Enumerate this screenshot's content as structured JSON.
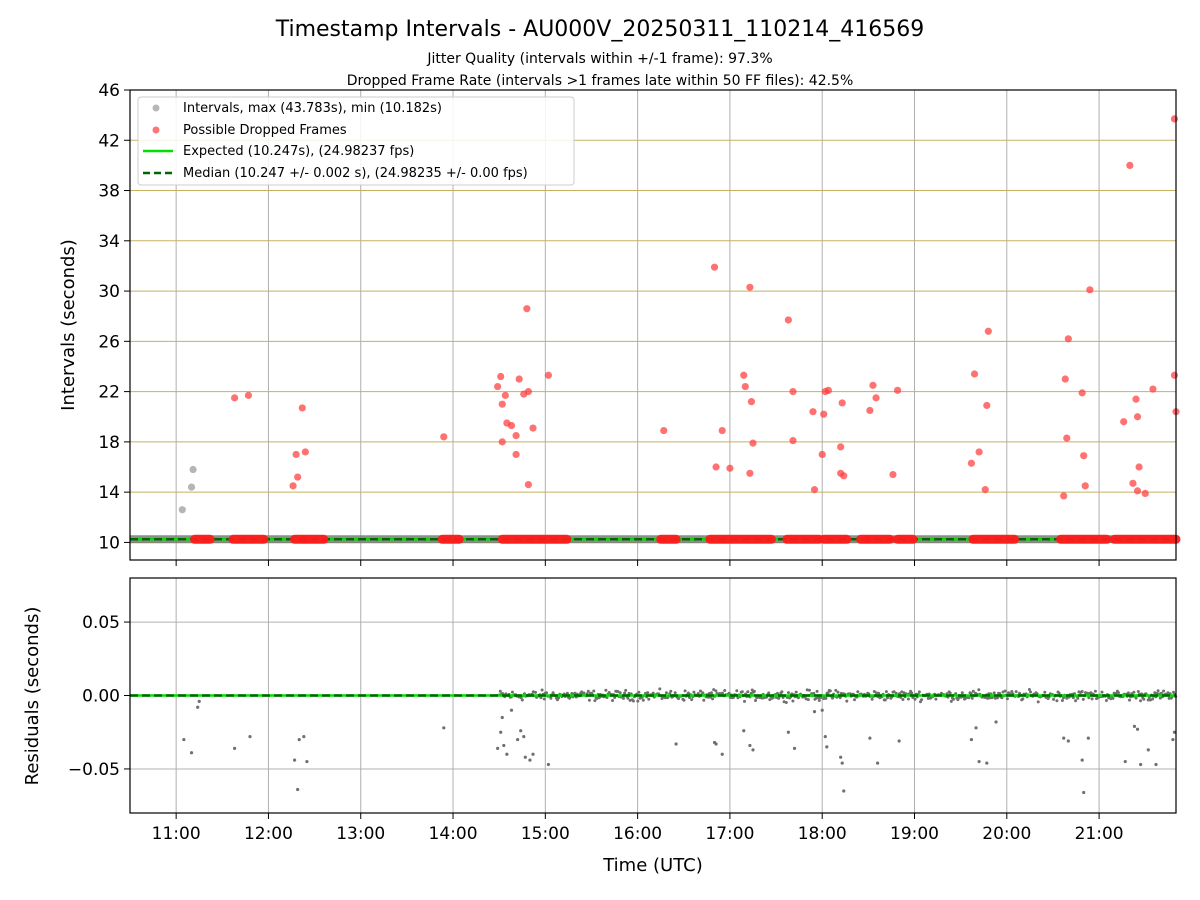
{
  "chart_data": [
    {
      "type": "scatter",
      "title": "Timestamp Intervals - AU000V_20250311_110214_416569",
      "subtitle_lines": [
        "Jitter Quality (intervals within +/-1 frame): 97.3%",
        "Dropped Frame Rate (intervals >1 frames late within 50 FF files): 42.5%"
      ],
      "xlabel": "",
      "ylabel": "Intervals (seconds)",
      "xlim": [
        "10:30",
        "21:50"
      ],
      "ylim": [
        8.6,
        46
      ],
      "yticks": [
        10,
        14,
        18,
        22,
        26,
        30,
        34,
        38,
        42,
        46
      ],
      "ytick_labels": [
        "10",
        "14",
        "18",
        "22",
        "26",
        "30",
        "34",
        "38",
        "42",
        "46"
      ],
      "grid": {
        "vertical": "#b0b0b0",
        "horizontal": "#c8b060"
      },
      "legend": {
        "placement": "top-left",
        "entries": [
          {
            "label": "Intervals, max (43.783s), min (10.182s)",
            "kind": "marker",
            "color": "#999999"
          },
          {
            "label": "Possible Dropped Frames",
            "kind": "marker",
            "color": "#ff3b3b"
          },
          {
            "label": "Expected (10.247s), (24.98237 fps)",
            "kind": "line",
            "color": "#00e000"
          },
          {
            "label": "Median (10.247 +/- 0.002 s), (24.98235 +/- 0.00 fps)",
            "kind": "dashed",
            "color": "#006600"
          }
        ]
      },
      "expected_value": 10.247,
      "median_value": 10.247,
      "baseline_segments": [
        [
          "10:30",
          "21:50"
        ]
      ],
      "dropped_baseline_segments": [
        [
          "11:12",
          "11:22"
        ],
        [
          "11:37",
          "11:57"
        ],
        [
          "12:17",
          "12:23"
        ],
        [
          "12:24",
          "12:36"
        ],
        [
          "13:53",
          "14:04"
        ],
        [
          "14:32",
          "15:14"
        ],
        [
          "16:15",
          "16:25"
        ],
        [
          "16:47",
          "17:27"
        ],
        [
          "17:37",
          "17:58"
        ],
        [
          "18:01",
          "18:16"
        ],
        [
          "18:25",
          "18:29"
        ],
        [
          "18:30",
          "18:44"
        ],
        [
          "18:49",
          "18:59"
        ],
        [
          "19:38",
          "20:05"
        ],
        [
          "20:35",
          "21:05"
        ],
        [
          "21:10",
          "21:50"
        ]
      ],
      "series": [
        {
          "name": "Intervals, max (43.783s), min (10.182s)",
          "color": "#999999",
          "points": [
            [
              "11:04",
              12.6
            ],
            [
              "11:10",
              14.4
            ],
            [
              "11:11",
              15.8
            ]
          ]
        },
        {
          "name": "Possible Dropped Frames",
          "color": "#ff3b3b",
          "points": [
            [
              "11:38",
              21.5
            ],
            [
              "11:47",
              21.7
            ],
            [
              "12:16",
              14.5
            ],
            [
              "12:18",
              17.0
            ],
            [
              "12:19",
              15.2
            ],
            [
              "12:22",
              20.7
            ],
            [
              "12:24",
              17.2
            ],
            [
              "13:54",
              18.4
            ],
            [
              "14:29",
              22.4
            ],
            [
              "14:31",
              23.2
            ],
            [
              "14:32",
              18.0
            ],
            [
              "14:32",
              21.0
            ],
            [
              "14:34",
              21.7
            ],
            [
              "14:35",
              19.5
            ],
            [
              "14:38",
              19.3
            ],
            [
              "14:41",
              18.5
            ],
            [
              "14:41",
              17.0
            ],
            [
              "14:43",
              23.0
            ],
            [
              "14:46",
              21.8
            ],
            [
              "14:48",
              28.6
            ],
            [
              "14:49",
              22.0
            ],
            [
              "14:49",
              14.6
            ],
            [
              "14:52",
              19.1
            ],
            [
              "15:02",
              23.3
            ],
            [
              "16:17",
              18.9
            ],
            [
              "16:50",
              31.9
            ],
            [
              "16:51",
              16.0
            ],
            [
              "16:55",
              18.9
            ],
            [
              "17:00",
              15.9
            ],
            [
              "17:09",
              23.3
            ],
            [
              "17:10",
              22.4
            ],
            [
              "17:13",
              15.5
            ],
            [
              "17:13",
              30.3
            ],
            [
              "17:14",
              21.2
            ],
            [
              "17:15",
              17.9
            ],
            [
              "17:38",
              27.7
            ],
            [
              "17:41",
              22.0
            ],
            [
              "17:41",
              18.1
            ],
            [
              "17:54",
              20.4
            ],
            [
              "17:55",
              14.2
            ],
            [
              "18:00",
              17.0
            ],
            [
              "18:01",
              20.2
            ],
            [
              "18:02",
              22.0
            ],
            [
              "18:04",
              22.1
            ],
            [
              "18:12",
              17.6
            ],
            [
              "18:12",
              15.5
            ],
            [
              "18:13",
              21.1
            ],
            [
              "18:14",
              15.3
            ],
            [
              "18:31",
              20.5
            ],
            [
              "18:33",
              22.5
            ],
            [
              "18:35",
              21.5
            ],
            [
              "18:46",
              15.4
            ],
            [
              "18:49",
              22.1
            ],
            [
              "19:37",
              16.3
            ],
            [
              "19:39",
              23.4
            ],
            [
              "19:42",
              17.2
            ],
            [
              "19:46",
              14.2
            ],
            [
              "19:47",
              20.9
            ],
            [
              "19:48",
              26.8
            ],
            [
              "20:37",
              13.7
            ],
            [
              "20:38",
              23.0
            ],
            [
              "20:39",
              18.3
            ],
            [
              "20:40",
              26.2
            ],
            [
              "20:49",
              21.9
            ],
            [
              "20:50",
              16.9
            ],
            [
              "20:51",
              14.5
            ],
            [
              "20:54",
              30.1
            ],
            [
              "21:16",
              19.6
            ],
            [
              "21:20",
              40.0
            ],
            [
              "21:22",
              14.7
            ],
            [
              "21:24",
              21.4
            ],
            [
              "21:25",
              20.0
            ],
            [
              "21:25",
              14.1
            ],
            [
              "21:26",
              16.0
            ],
            [
              "21:30",
              13.9
            ],
            [
              "21:35",
              22.2
            ],
            [
              "21:49",
              43.7
            ],
            [
              "21:49",
              23.3
            ],
            [
              "21:50",
              20.4
            ]
          ]
        }
      ]
    },
    {
      "type": "scatter",
      "xlabel": "Time (UTC)",
      "ylabel": "Residuals (seconds)",
      "xlim": [
        "10:30",
        "21:50"
      ],
      "ylim": [
        -0.08,
        0.08
      ],
      "yticks": [
        -0.05,
        0,
        0.05
      ],
      "ytick_labels": [
        "−0.05",
        "0.00",
        "0.05"
      ],
      "xticks": [
        "11:00",
        "12:00",
        "13:00",
        "14:00",
        "15:00",
        "16:00",
        "17:00",
        "18:00",
        "19:00",
        "20:00",
        "21:00"
      ],
      "xtick_labels": [
        "11:00",
        "12:00",
        "13:00",
        "14:00",
        "15:00",
        "16:00",
        "17:00",
        "18:00",
        "19:00",
        "20:00",
        "21:00"
      ],
      "grid": {
        "vertical": "#b0b0b0",
        "horizontal": "#b0b0b0"
      },
      "zero_line": 0,
      "dense_band": {
        "from": "14:30",
        "to": "21:50",
        "min": -0.005,
        "max": 0.005,
        "color": "#707070"
      },
      "series": [
        {
          "name": "",
          "color": "#707070",
          "points": [
            [
              "11:05",
              -0.03
            ],
            [
              "11:10",
              -0.039
            ],
            [
              "11:14",
              -0.008
            ],
            [
              "11:15",
              -0.004
            ],
            [
              "11:38",
              -0.036
            ],
            [
              "11:48",
              -0.028
            ],
            [
              "12:17",
              -0.044
            ],
            [
              "12:19",
              -0.064
            ],
            [
              "12:20",
              -0.03
            ],
            [
              "12:23",
              -0.028
            ],
            [
              "12:25",
              -0.045
            ],
            [
              "13:54",
              -0.022
            ],
            [
              "14:29",
              -0.036
            ],
            [
              "14:31",
              -0.025
            ],
            [
              "14:32",
              -0.015
            ],
            [
              "14:33",
              -0.034
            ],
            [
              "14:35",
              -0.04
            ],
            [
              "14:38",
              -0.01
            ],
            [
              "14:42",
              -0.03
            ],
            [
              "14:44",
              -0.024
            ],
            [
              "14:46",
              -0.028
            ],
            [
              "14:47",
              -0.042
            ],
            [
              "14:50",
              -0.044
            ],
            [
              "14:52",
              -0.04
            ],
            [
              "15:02",
              -0.047
            ],
            [
              "16:25",
              -0.033
            ],
            [
              "16:50",
              -0.032
            ],
            [
              "16:51",
              -0.033
            ],
            [
              "16:55",
              -0.04
            ],
            [
              "17:09",
              -0.024
            ],
            [
              "17:13",
              -0.034
            ],
            [
              "17:15",
              -0.037
            ],
            [
              "17:38",
              -0.025
            ],
            [
              "17:42",
              -0.036
            ],
            [
              "17:55",
              -0.011
            ],
            [
              "18:00",
              -0.01
            ],
            [
              "18:02",
              -0.028
            ],
            [
              "18:03",
              -0.035
            ],
            [
              "18:12",
              -0.042
            ],
            [
              "18:13",
              -0.046
            ],
            [
              "18:14",
              -0.065
            ],
            [
              "18:31",
              -0.029
            ],
            [
              "18:36",
              -0.046
            ],
            [
              "18:50",
              -0.031
            ],
            [
              "19:37",
              -0.03
            ],
            [
              "19:40",
              -0.022
            ],
            [
              "19:42",
              -0.045
            ],
            [
              "19:47",
              -0.046
            ],
            [
              "19:53",
              -0.018
            ],
            [
              "20:37",
              -0.029
            ],
            [
              "20:40",
              -0.031
            ],
            [
              "20:49",
              -0.044
            ],
            [
              "20:50",
              -0.066
            ],
            [
              "20:53",
              -0.029
            ],
            [
              "21:17",
              -0.045
            ],
            [
              "21:23",
              -0.021
            ],
            [
              "21:25",
              -0.023
            ],
            [
              "21:27",
              -0.047
            ],
            [
              "21:32",
              -0.037
            ],
            [
              "21:37",
              -0.047
            ],
            [
              "21:48",
              -0.03
            ],
            [
              "21:49",
              -0.025
            ]
          ]
        }
      ]
    }
  ]
}
